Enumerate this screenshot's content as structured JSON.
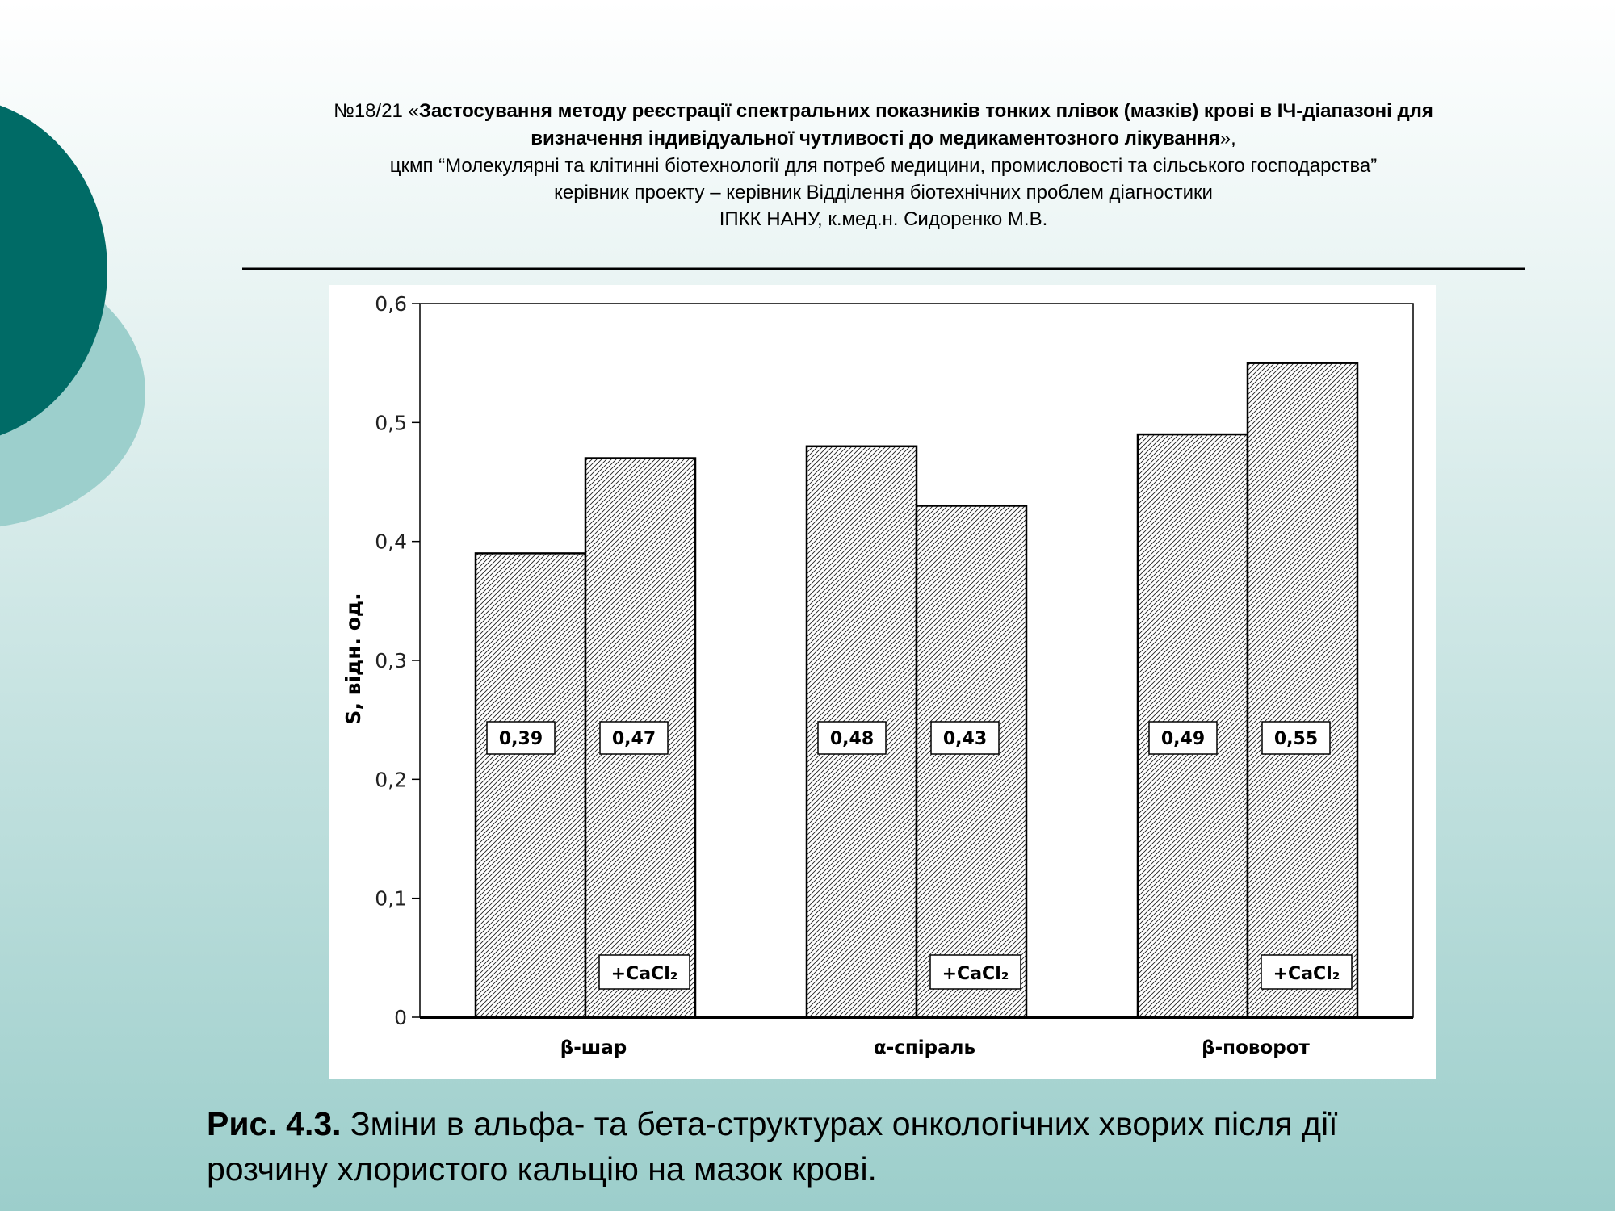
{
  "header": {
    "prefix": "№18/21 «",
    "title_line1": "Застосування методу реєстрації спектральних показників тонких плівок (мазків) крові в ІЧ-діапазоні для",
    "title_line2": "визначення індивідуальної чутливості до медикаментозного лікування",
    "suffix": "»,",
    "lines": [
      "цкмп “Молекулярні та клітинні біотехнології для потреб медицини, промисловості та сільського господарства”",
      "керівник проекту – керівник Відділення біотехнічних проблем діагностики",
      "ІПКК НАНУ, к.мед.н. Сидоренко М.В."
    ]
  },
  "chart_data": {
    "type": "bar",
    "ylabel": "S, відн. од.",
    "categories": [
      "β-шар",
      "α-спіраль",
      "β-поворот"
    ],
    "series": [
      {
        "values": [
          0.39,
          0.48,
          0.49
        ],
        "value_labels": [
          "0,39",
          "0,48",
          "0,49"
        ]
      },
      {
        "values": [
          0.47,
          0.43,
          0.55
        ],
        "value_labels": [
          "0,47",
          "0,43",
          "0,55"
        ],
        "annotation": "+CaCl₂"
      }
    ],
    "ylim": [
      0,
      0.6
    ],
    "yticks": [
      0,
      {
        "value": 0.1,
        "label": "0,1"
      },
      {
        "value": 0.2,
        "label": "0,2"
      },
      {
        "value": 0.3,
        "label": "0,3"
      },
      {
        "value": 0.4,
        "label": "0,4"
      },
      {
        "value": 0.5,
        "label": "0,5"
      },
      {
        "value": 0.6,
        "label": "0,6"
      }
    ]
  },
  "caption": {
    "label": "Рис. 4.3.",
    "line1": " Зміни в альфа- та бета-структурах онкологічних хворих після дії",
    "line2": "розчину хлористого кальцію на мазок крові."
  }
}
